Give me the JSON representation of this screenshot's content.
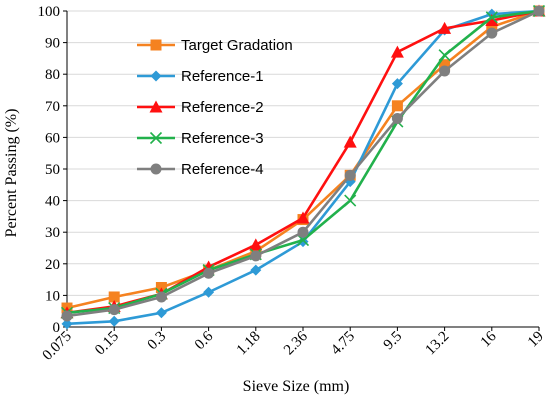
{
  "chart_data": {
    "type": "line",
    "xlabel": "Sieve Size (mm)",
    "ylabel": "Percent Passing (%)",
    "categories": [
      "0.075",
      "0.15",
      "0.3",
      "0.6",
      "1.18",
      "2.36",
      "4.75",
      "9.5",
      "13.2",
      "16",
      "19"
    ],
    "ylim": [
      0,
      100
    ],
    "yticks": [
      0,
      10,
      20,
      30,
      40,
      50,
      60,
      70,
      80,
      90,
      100
    ],
    "legend_position": "top-left",
    "series": [
      {
        "name": "Target Gradation",
        "color": "#f58220",
        "marker": "square",
        "values": [
          6,
          9.5,
          12.5,
          18,
          24,
          34,
          48,
          70,
          83,
          95,
          100
        ]
      },
      {
        "name": "Reference-1",
        "color": "#2e9ad6",
        "marker": "diamond",
        "values": [
          1,
          1.8,
          4.5,
          11,
          18,
          27,
          46,
          77,
          94,
          99,
          100
        ]
      },
      {
        "name": "Reference-2",
        "color": "#ff1010",
        "marker": "triangle",
        "values": [
          4.5,
          6.5,
          10.5,
          19,
          26,
          34.5,
          58.5,
          87,
          94.5,
          97,
          100
        ]
      },
      {
        "name": "Reference-3",
        "color": "#22b14c",
        "marker": "x",
        "values": [
          4.5,
          6,
          10.5,
          18,
          23,
          27.5,
          40,
          65,
          86,
          98,
          100
        ]
      },
      {
        "name": "Reference-4",
        "color": "#7f7f7f",
        "marker": "circle",
        "values": [
          3.5,
          5.5,
          9.5,
          17,
          22.5,
          30,
          48,
          66,
          81,
          93,
          100
        ]
      }
    ]
  }
}
